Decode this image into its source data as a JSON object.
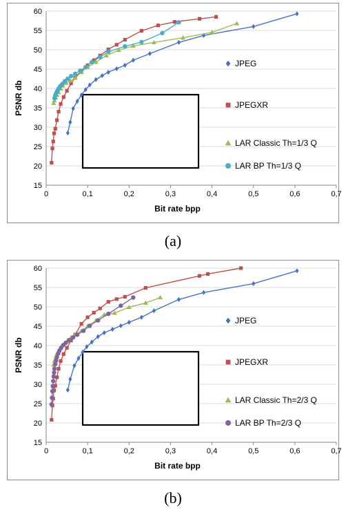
{
  "captions": [
    "(a)",
    "(b)"
  ],
  "chart_data": [
    {
      "type": "line",
      "xlabel": "Bit rate bpp",
      "ylabel": "PSNR db",
      "xlim": [
        0,
        0.7
      ],
      "ylim": [
        15,
        60
      ],
      "x_ticks": [
        "0",
        "0,1",
        "0,2",
        "0,3",
        "0,4",
        "0,5",
        "0,6",
        "0,7"
      ],
      "y_ticks": [
        "15",
        "20",
        "25",
        "30",
        "35",
        "40",
        "45",
        "50",
        "55",
        "60"
      ],
      "grid": "horizontal",
      "legend_position": "right",
      "series": [
        {
          "name": "JPEG",
          "color": "#4472c4",
          "marker": "diamond",
          "x": [
            0.052,
            0.058,
            0.065,
            0.075,
            0.085,
            0.095,
            0.105,
            0.12,
            0.135,
            0.15,
            0.17,
            0.19,
            0.21,
            0.25,
            0.32,
            0.38,
            0.5,
            0.605
          ],
          "y": [
            28.5,
            31.3,
            34.8,
            36.7,
            38.3,
            39.7,
            40.9,
            42.3,
            43.3,
            44.2,
            45.1,
            46.0,
            47.3,
            49.0,
            51.9,
            53.7,
            56.0,
            59.3
          ]
        },
        {
          "name": "JPEGXR",
          "color": "#c0504d",
          "marker": "square",
          "x": [
            0.013,
            0.015,
            0.017,
            0.019,
            0.022,
            0.026,
            0.03,
            0.035,
            0.042,
            0.05,
            0.06,
            0.07,
            0.085,
            0.1,
            0.115,
            0.13,
            0.15,
            0.17,
            0.19,
            0.23,
            0.27,
            0.31,
            0.37,
            0.41
          ],
          "y": [
            20.8,
            24.5,
            26.3,
            28.4,
            29.6,
            31.8,
            34.0,
            36.0,
            37.8,
            39.4,
            41.3,
            42.8,
            44.6,
            46.0,
            47.3,
            48.5,
            50.1,
            51.3,
            52.6,
            54.9,
            56.3,
            57.2,
            58.0,
            58.5
          ]
        },
        {
          "name": "LAR Classic Th=1/3 Q",
          "color": "#9bbb59",
          "marker": "triangle",
          "x": [
            0.018,
            0.02,
            0.023,
            0.026,
            0.03,
            0.035,
            0.04,
            0.048,
            0.058,
            0.07,
            0.085,
            0.1,
            0.12,
            0.145,
            0.175,
            0.21,
            0.26,
            0.33,
            0.4,
            0.46
          ],
          "y": [
            36.2,
            36.9,
            37.6,
            38.3,
            39.0,
            39.9,
            40.7,
            41.4,
            42.0,
            42.7,
            44.2,
            45.5,
            46.8,
            48.5,
            49.9,
            51.0,
            51.9,
            53.1,
            54.5,
            56.8
          ]
        },
        {
          "name": "LAR BP Th=1/3 Q",
          "color": "#4bacc6",
          "marker": "circle",
          "x": [
            0.02,
            0.022,
            0.024,
            0.027,
            0.03,
            0.034,
            0.039,
            0.045,
            0.052,
            0.06,
            0.07,
            0.082,
            0.095,
            0.11,
            0.13,
            0.15,
            0.19,
            0.23,
            0.28,
            0.32
          ],
          "y": [
            37.5,
            38.2,
            38.8,
            39.4,
            40.0,
            40.6,
            41.2,
            41.9,
            42.5,
            43.2,
            43.8,
            44.6,
            45.5,
            46.8,
            48.1,
            49.5,
            50.9,
            52.0,
            54.3,
            57.1
          ]
        }
      ]
    },
    {
      "type": "line",
      "xlabel": "Bit rate bpp",
      "ylabel": "PSNR db",
      "xlim": [
        0,
        0.7
      ],
      "ylim": [
        15,
        60
      ],
      "x_ticks": [
        "0",
        "0,1",
        "0,2",
        "0,3",
        "0,4",
        "0,5",
        "0,6",
        "0,7"
      ],
      "y_ticks": [
        "15",
        "20",
        "25",
        "30",
        "35",
        "40",
        "45",
        "50",
        "55",
        "60"
      ],
      "grid": "horizontal",
      "legend_position": "right",
      "series": [
        {
          "name": "JPEG",
          "color": "#4472c4",
          "marker": "diamond",
          "x": [
            0.052,
            0.058,
            0.068,
            0.078,
            0.088,
            0.098,
            0.11,
            0.125,
            0.14,
            0.16,
            0.18,
            0.2,
            0.23,
            0.26,
            0.32,
            0.38,
            0.5,
            0.605
          ],
          "y": [
            28.5,
            31.3,
            34.8,
            36.7,
            38.3,
            39.7,
            40.9,
            42.3,
            43.3,
            44.2,
            45.1,
            46.0,
            47.3,
            49.0,
            51.9,
            53.7,
            56.0,
            59.3
          ]
        },
        {
          "name": "JPEGXR",
          "color": "#c0504d",
          "marker": "square",
          "x": [
            0.013,
            0.015,
            0.017,
            0.019,
            0.022,
            0.026,
            0.03,
            0.035,
            0.042,
            0.05,
            0.06,
            0.07,
            0.085,
            0.1,
            0.115,
            0.13,
            0.15,
            0.17,
            0.19,
            0.24,
            0.37,
            0.39,
            0.47
          ],
          "y": [
            20.8,
            24.5,
            26.3,
            28.4,
            29.6,
            31.8,
            34.0,
            36.0,
            37.8,
            39.4,
            41.3,
            42.8,
            45.6,
            47.3,
            48.5,
            49.6,
            51.3,
            52.0,
            52.6,
            54.9,
            58.0,
            58.5,
            60.0
          ]
        },
        {
          "name": "LAR Classic Th=2/3 Q",
          "color": "#9bbb59",
          "marker": "triangle",
          "x": [
            0.018,
            0.02,
            0.023,
            0.026,
            0.03,
            0.035,
            0.042,
            0.05,
            0.06,
            0.072,
            0.085,
            0.1,
            0.12,
            0.14,
            0.165,
            0.2,
            0.24,
            0.275
          ],
          "y": [
            35.0,
            36.0,
            37.0,
            37.9,
            38.6,
            39.3,
            40.1,
            41.0,
            42.1,
            43.0,
            43.8,
            45.0,
            46.5,
            48.0,
            48.4,
            49.9,
            51.0,
            52.4
          ]
        },
        {
          "name": "LAR BP Th=2/3 Q",
          "color": "#8064a2",
          "marker": "circle",
          "x": [
            0.013,
            0.014,
            0.015,
            0.016,
            0.017,
            0.018,
            0.019,
            0.02,
            0.022,
            0.024,
            0.026,
            0.029,
            0.032,
            0.036,
            0.041,
            0.047,
            0.055,
            0.065,
            0.075,
            0.09,
            0.105,
            0.125,
            0.15,
            0.18,
            0.21
          ],
          "y": [
            24.8,
            26.5,
            28.2,
            29.5,
            30.8,
            32.0,
            33.0,
            34.0,
            35.2,
            36.1,
            37.0,
            37.9,
            38.7,
            39.4,
            40.1,
            40.7,
            41.4,
            42.1,
            42.8,
            43.8,
            45.1,
            46.5,
            48.2,
            50.3,
            52.4
          ]
        }
      ]
    }
  ]
}
